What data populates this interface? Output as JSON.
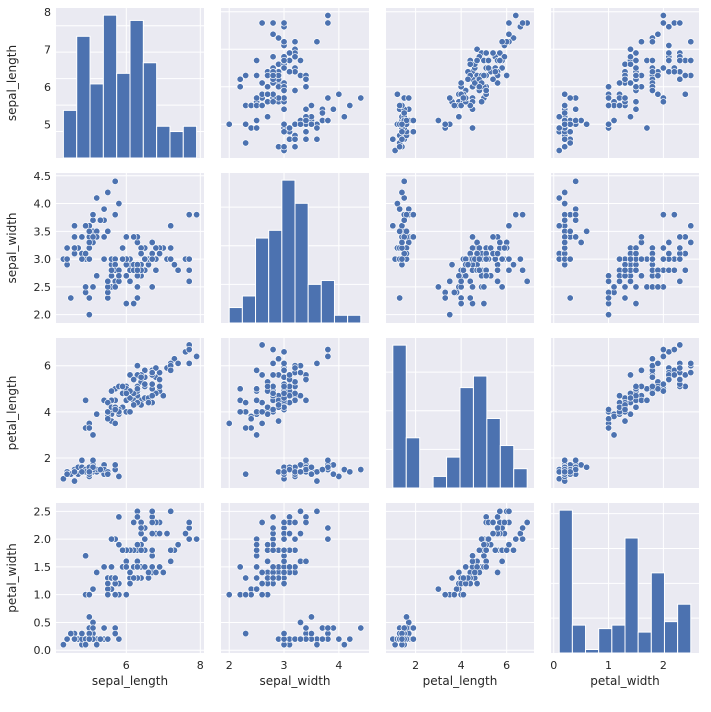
{
  "colors": {
    "panel_bg": "#EAEAF2",
    "grid": "#FFFFFF",
    "mark": "#4C72B0",
    "text": "#262626"
  },
  "chart_data": {
    "type": "pairplot",
    "variables": [
      "sepal_length",
      "sepal_width",
      "petal_length",
      "petal_width"
    ],
    "labels": [
      "sepal_length",
      "sepal_width",
      "petal_length",
      "petal_width"
    ],
    "grid": true,
    "axes": [
      {
        "lim": [
          4.1,
          8.1
        ],
        "ticks": [
          6,
          8
        ],
        "yticks": [
          5,
          6,
          7,
          8
        ]
      },
      {
        "lim": [
          1.85,
          4.55
        ],
        "ticks": [
          2,
          3,
          4
        ],
        "yticks": [
          2.0,
          2.5,
          3.0,
          3.5,
          4.0,
          4.5
        ]
      },
      {
        "lim": [
          0.7,
          7.2
        ],
        "ticks": [
          2,
          4,
          6
        ],
        "yticks": [
          2,
          4,
          6
        ]
      },
      {
        "lim": [
          -0.05,
          2.65
        ],
        "ticks": [
          0,
          1,
          2
        ],
        "yticks": [
          0.0,
          0.5,
          1.0,
          1.5,
          2.0,
          2.5
        ]
      }
    ],
    "histograms": [
      {
        "variable": "sepal_length",
        "edges": [
          4.3,
          4.66,
          5.02,
          5.38,
          5.74,
          6.1,
          6.46,
          6.82,
          7.18,
          7.54,
          7.9
        ],
        "counts": [
          9,
          23,
          14,
          27,
          16,
          26,
          18,
          6,
          5,
          6
        ]
      },
      {
        "variable": "sepal_width",
        "edges": [
          2.0,
          2.24,
          2.48,
          2.72,
          2.96,
          3.2,
          3.44,
          3.68,
          3.92,
          4.16,
          4.4
        ],
        "counts": [
          4,
          7,
          22,
          24,
          37,
          31,
          10,
          11,
          2,
          2
        ]
      },
      {
        "variable": "petal_length",
        "edges": [
          1.0,
          1.59,
          2.18,
          2.77,
          3.36,
          3.95,
          4.54,
          5.13,
          5.72,
          6.31,
          6.9
        ],
        "counts": [
          37,
          13,
          0,
          3,
          8,
          26,
          29,
          18,
          11,
          5
        ]
      },
      {
        "variable": "petal_width",
        "edges": [
          0.1,
          0.34,
          0.58,
          0.82,
          1.06,
          1.3,
          1.54,
          1.78,
          2.02,
          2.26,
          2.5
        ],
        "counts": [
          41,
          8,
          1,
          7,
          8,
          33,
          6,
          23,
          9,
          14
        ]
      }
    ],
    "observations": [
      [
        5.1,
        3.5,
        1.4,
        0.2
      ],
      [
        4.9,
        3.0,
        1.4,
        0.2
      ],
      [
        4.7,
        3.2,
        1.3,
        0.2
      ],
      [
        4.6,
        3.1,
        1.5,
        0.2
      ],
      [
        5.0,
        3.6,
        1.4,
        0.2
      ],
      [
        5.4,
        3.9,
        1.7,
        0.4
      ],
      [
        4.6,
        3.4,
        1.4,
        0.3
      ],
      [
        5.0,
        3.4,
        1.5,
        0.2
      ],
      [
        4.4,
        2.9,
        1.4,
        0.2
      ],
      [
        4.9,
        3.1,
        1.5,
        0.1
      ],
      [
        5.4,
        3.7,
        1.5,
        0.2
      ],
      [
        4.8,
        3.4,
        1.6,
        0.2
      ],
      [
        4.8,
        3.0,
        1.4,
        0.1
      ],
      [
        4.3,
        3.0,
        1.1,
        0.1
      ],
      [
        5.8,
        4.0,
        1.2,
        0.2
      ],
      [
        5.7,
        4.4,
        1.5,
        0.4
      ],
      [
        5.4,
        3.9,
        1.3,
        0.4
      ],
      [
        5.1,
        3.5,
        1.4,
        0.3
      ],
      [
        5.7,
        3.8,
        1.7,
        0.3
      ],
      [
        5.1,
        3.8,
        1.5,
        0.3
      ],
      [
        5.4,
        3.4,
        1.7,
        0.2
      ],
      [
        5.1,
        3.7,
        1.5,
        0.4
      ],
      [
        4.6,
        3.6,
        1.0,
        0.2
      ],
      [
        5.1,
        3.3,
        1.7,
        0.5
      ],
      [
        4.8,
        3.4,
        1.9,
        0.2
      ],
      [
        5.0,
        3.0,
        1.6,
        0.2
      ],
      [
        5.0,
        3.4,
        1.6,
        0.4
      ],
      [
        5.2,
        3.5,
        1.5,
        0.2
      ],
      [
        5.2,
        3.4,
        1.4,
        0.2
      ],
      [
        4.7,
        3.2,
        1.6,
        0.2
      ],
      [
        4.8,
        3.1,
        1.6,
        0.2
      ],
      [
        5.4,
        3.4,
        1.5,
        0.4
      ],
      [
        5.2,
        4.1,
        1.5,
        0.1
      ],
      [
        5.5,
        4.2,
        1.4,
        0.2
      ],
      [
        4.9,
        3.1,
        1.5,
        0.2
      ],
      [
        5.0,
        3.2,
        1.2,
        0.2
      ],
      [
        5.5,
        3.5,
        1.3,
        0.2
      ],
      [
        4.9,
        3.6,
        1.4,
        0.1
      ],
      [
        4.4,
        3.0,
        1.3,
        0.2
      ],
      [
        5.1,
        3.4,
        1.5,
        0.2
      ],
      [
        5.0,
        3.5,
        1.3,
        0.3
      ],
      [
        4.5,
        2.3,
        1.3,
        0.3
      ],
      [
        4.4,
        3.2,
        1.3,
        0.2
      ],
      [
        5.0,
        3.5,
        1.6,
        0.6
      ],
      [
        5.1,
        3.8,
        1.9,
        0.4
      ],
      [
        4.8,
        3.0,
        1.4,
        0.3
      ],
      [
        5.1,
        3.8,
        1.6,
        0.2
      ],
      [
        4.6,
        3.2,
        1.4,
        0.2
      ],
      [
        5.3,
        3.7,
        1.5,
        0.2
      ],
      [
        5.0,
        3.3,
        1.4,
        0.2
      ],
      [
        7.0,
        3.2,
        4.7,
        1.4
      ],
      [
        6.4,
        3.2,
        4.5,
        1.5
      ],
      [
        6.9,
        3.1,
        4.9,
        1.5
      ],
      [
        5.5,
        2.3,
        4.0,
        1.3
      ],
      [
        6.5,
        2.8,
        4.6,
        1.5
      ],
      [
        5.7,
        2.8,
        4.5,
        1.3
      ],
      [
        6.3,
        3.3,
        4.7,
        1.6
      ],
      [
        4.9,
        2.4,
        3.3,
        1.0
      ],
      [
        6.6,
        2.9,
        4.6,
        1.3
      ],
      [
        5.2,
        2.7,
        3.9,
        1.4
      ],
      [
        5.0,
        2.0,
        3.5,
        1.0
      ],
      [
        5.9,
        3.0,
        4.2,
        1.5
      ],
      [
        6.0,
        2.2,
        4.0,
        1.0
      ],
      [
        6.1,
        2.9,
        4.7,
        1.4
      ],
      [
        5.6,
        2.9,
        3.6,
        1.3
      ],
      [
        6.7,
        3.1,
        4.4,
        1.4
      ],
      [
        5.6,
        3.0,
        4.5,
        1.5
      ],
      [
        5.8,
        2.7,
        4.1,
        1.0
      ],
      [
        6.2,
        2.2,
        4.5,
        1.5
      ],
      [
        5.6,
        2.5,
        3.9,
        1.1
      ],
      [
        5.9,
        3.2,
        4.8,
        1.8
      ],
      [
        6.1,
        2.8,
        4.0,
        1.3
      ],
      [
        6.3,
        2.5,
        4.9,
        1.5
      ],
      [
        6.1,
        2.8,
        4.7,
        1.2
      ],
      [
        6.4,
        2.9,
        4.3,
        1.3
      ],
      [
        6.6,
        3.0,
        4.4,
        1.4
      ],
      [
        6.8,
        2.8,
        4.8,
        1.4
      ],
      [
        6.7,
        3.0,
        5.0,
        1.7
      ],
      [
        6.0,
        2.9,
        4.5,
        1.5
      ],
      [
        5.7,
        2.6,
        3.5,
        1.0
      ],
      [
        5.5,
        2.4,
        3.8,
        1.1
      ],
      [
        5.5,
        2.4,
        3.7,
        1.0
      ],
      [
        5.8,
        2.7,
        3.9,
        1.2
      ],
      [
        6.0,
        2.7,
        5.1,
        1.6
      ],
      [
        5.4,
        3.0,
        4.5,
        1.5
      ],
      [
        6.0,
        3.4,
        4.5,
        1.6
      ],
      [
        6.7,
        3.1,
        4.7,
        1.5
      ],
      [
        6.3,
        2.3,
        4.4,
        1.3
      ],
      [
        5.6,
        3.0,
        4.1,
        1.3
      ],
      [
        5.5,
        2.5,
        4.0,
        1.3
      ],
      [
        5.5,
        2.6,
        4.4,
        1.2
      ],
      [
        6.1,
        3.0,
        4.6,
        1.4
      ],
      [
        5.8,
        2.6,
        4.0,
        1.2
      ],
      [
        5.0,
        2.3,
        3.3,
        1.0
      ],
      [
        5.6,
        2.7,
        4.2,
        1.3
      ],
      [
        5.7,
        3.0,
        4.2,
        1.2
      ],
      [
        5.7,
        2.9,
        4.2,
        1.3
      ],
      [
        6.2,
        2.9,
        4.3,
        1.3
      ],
      [
        5.1,
        2.5,
        3.0,
        1.1
      ],
      [
        5.7,
        2.8,
        4.1,
        1.3
      ],
      [
        6.3,
        3.3,
        6.0,
        2.5
      ],
      [
        5.8,
        2.7,
        5.1,
        1.9
      ],
      [
        7.1,
        3.0,
        5.9,
        2.1
      ],
      [
        6.3,
        2.9,
        5.6,
        1.8
      ],
      [
        6.5,
        3.0,
        5.8,
        2.2
      ],
      [
        7.6,
        3.0,
        6.6,
        2.1
      ],
      [
        4.9,
        2.5,
        4.5,
        1.7
      ],
      [
        7.3,
        2.9,
        6.3,
        1.8
      ],
      [
        6.7,
        2.5,
        5.8,
        1.8
      ],
      [
        7.2,
        3.6,
        6.1,
        2.5
      ],
      [
        6.5,
        3.2,
        5.1,
        2.0
      ],
      [
        6.4,
        2.7,
        5.3,
        1.9
      ],
      [
        6.8,
        3.0,
        5.5,
        2.1
      ],
      [
        5.7,
        2.5,
        5.0,
        2.0
      ],
      [
        5.8,
        2.8,
        5.1,
        2.4
      ],
      [
        6.4,
        3.2,
        5.3,
        2.3
      ],
      [
        6.5,
        3.0,
        5.5,
        1.8
      ],
      [
        7.7,
        3.8,
        6.7,
        2.2
      ],
      [
        7.7,
        2.6,
        6.9,
        2.3
      ],
      [
        6.0,
        2.2,
        5.0,
        1.5
      ],
      [
        6.9,
        3.2,
        5.7,
        2.3
      ],
      [
        5.6,
        2.8,
        4.9,
        2.0
      ],
      [
        7.7,
        2.8,
        6.7,
        2.0
      ],
      [
        6.3,
        2.7,
        4.9,
        1.8
      ],
      [
        6.7,
        3.3,
        5.7,
        2.1
      ],
      [
        7.2,
        3.2,
        6.0,
        1.8
      ],
      [
        6.2,
        2.8,
        4.8,
        1.8
      ],
      [
        6.1,
        3.0,
        4.9,
        1.8
      ],
      [
        6.4,
        2.8,
        5.6,
        2.1
      ],
      [
        7.2,
        3.0,
        5.8,
        1.6
      ],
      [
        7.4,
        2.8,
        6.1,
        1.9
      ],
      [
        7.9,
        3.8,
        6.4,
        2.0
      ],
      [
        6.4,
        2.8,
        5.6,
        2.2
      ],
      [
        6.3,
        2.8,
        5.1,
        1.5
      ],
      [
        6.1,
        2.6,
        5.6,
        1.4
      ],
      [
        7.7,
        3.0,
        6.1,
        2.3
      ],
      [
        6.3,
        3.4,
        5.6,
        2.4
      ],
      [
        6.4,
        3.1,
        5.5,
        1.8
      ],
      [
        6.0,
        3.0,
        4.8,
        1.8
      ],
      [
        6.9,
        3.1,
        5.4,
        2.1
      ],
      [
        6.7,
        3.1,
        5.6,
        2.4
      ],
      [
        6.9,
        3.1,
        5.1,
        2.3
      ],
      [
        5.8,
        2.7,
        5.1,
        1.9
      ],
      [
        6.8,
        3.2,
        5.9,
        2.3
      ],
      [
        6.7,
        3.3,
        5.7,
        2.5
      ],
      [
        6.7,
        3.0,
        5.2,
        2.3
      ],
      [
        6.3,
        2.5,
        5.0,
        1.9
      ],
      [
        6.5,
        3.0,
        5.2,
        2.0
      ],
      [
        6.2,
        3.4,
        5.4,
        2.3
      ],
      [
        5.9,
        3.0,
        5.1,
        1.8
      ]
    ]
  }
}
